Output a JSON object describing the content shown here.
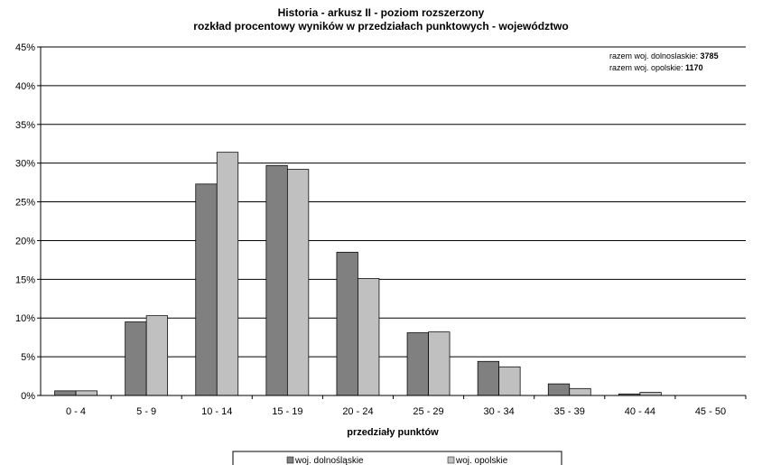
{
  "chart_data": {
    "type": "bar",
    "title": "Historia - arkusz II - poziom rozszerzony",
    "subtitle": "rozkład procentowy wyników w przedziałach punktowych - województwo",
    "xlabel": "przedziały punktów",
    "ylabel": "",
    "categories": [
      "0 - 4",
      "5 - 9",
      "10 - 14",
      "15 - 19",
      "20 - 24",
      "25 - 29",
      "30 - 34",
      "35 - 39",
      "40 - 44",
      "45 - 50"
    ],
    "ylim": [
      0,
      45
    ],
    "yticks": [
      "0%",
      "5%",
      "10%",
      "15%",
      "20%",
      "25%",
      "30%",
      "35%",
      "40%",
      "45%"
    ],
    "grid": true,
    "legend_position": "bottom",
    "series": [
      {
        "name": "woj. dolnośląskie",
        "color": "#808080",
        "values": [
          0.6,
          9.5,
          27.3,
          29.7,
          18.5,
          8.1,
          4.4,
          1.5,
          0.2,
          0.0
        ]
      },
      {
        "name": "woj. opolskie",
        "color": "#c0c0c0",
        "values": [
          0.6,
          10.3,
          31.4,
          29.2,
          15.1,
          8.2,
          3.7,
          0.9,
          0.4,
          0.0
        ]
      }
    ],
    "annotations": [
      {
        "label": "razem woj. dolnoslaskie: ",
        "value": "3785"
      },
      {
        "label": "razem woj. opolskie: ",
        "value": "1170"
      }
    ]
  }
}
